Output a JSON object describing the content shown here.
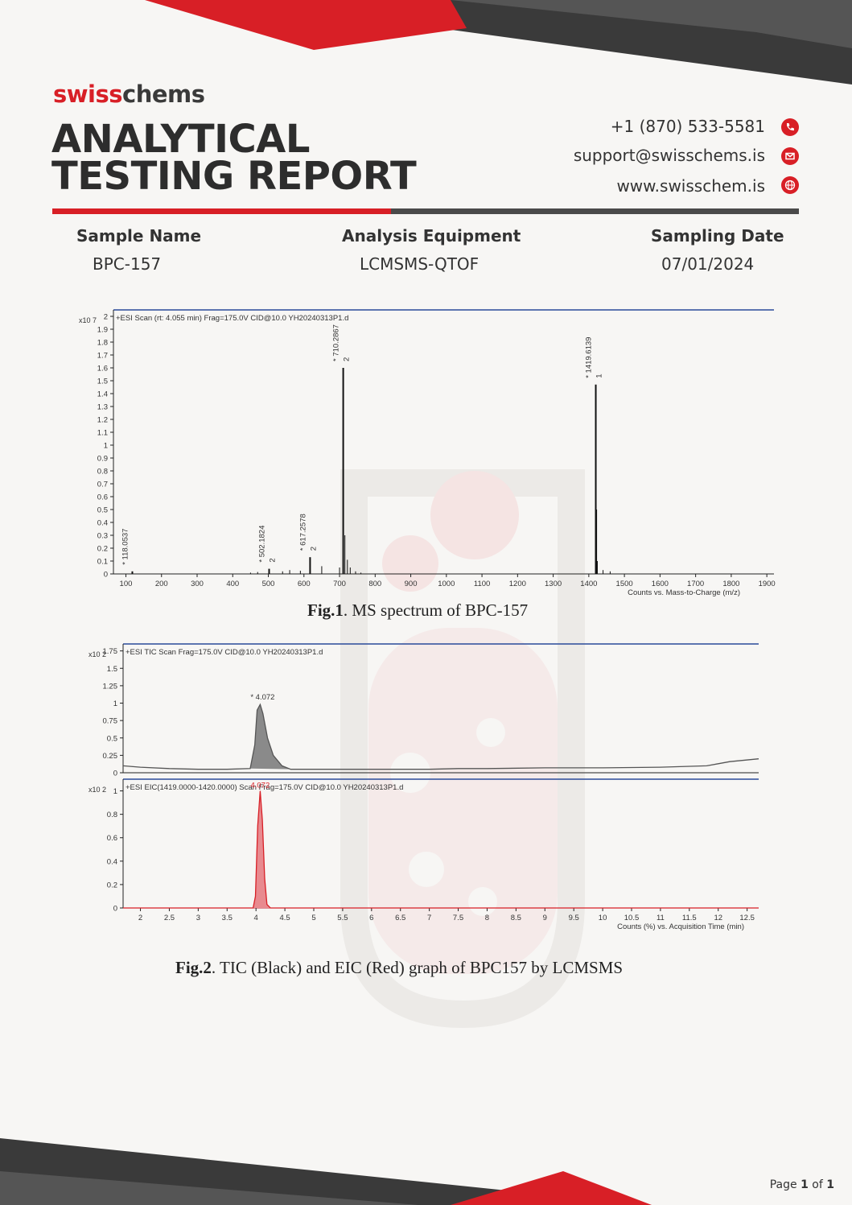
{
  "brand": {
    "part1": "swiss",
    "part2": "chems"
  },
  "title": {
    "line1": "ANALYTICAL",
    "line2": "TESTING REPORT"
  },
  "contact": {
    "phone": "+1 (870) 533-5581",
    "email": "support@swisschems.is",
    "website": "www.swisschem.is",
    "icons": [
      "phone-icon",
      "email-icon",
      "globe-icon"
    ]
  },
  "meta": {
    "sample_name_label": "Sample Name",
    "sample_name": "BPC-157",
    "equipment_label": "Analysis Equipment",
    "equipment": "LCMSMS-QTOF",
    "date_label": "Sampling Date",
    "date": "07/01/2024"
  },
  "colors": {
    "accent": "#d81f26",
    "dark": "#3a3a3a"
  },
  "chart_data": [
    {
      "type": "line",
      "chart": "ms-spectrum",
      "title": "+ESI Scan (rt: 4.055 min) Frag=175.0V CID@10.0 YH20240313P1.d",
      "y_multiplier": "x10 7",
      "xlabel": "Counts vs. Mass-to-Charge (m/z)",
      "xlim": [
        65,
        1920
      ],
      "ylim": [
        0,
        2.05
      ],
      "x_ticks": [
        "100",
        "200",
        "300",
        "400",
        "500",
        "600",
        "700",
        "800",
        "900",
        "1000",
        "1100",
        "1200",
        "1300",
        "1400",
        "1500",
        "1600",
        "1700",
        "1800",
        "1900"
      ],
      "y_ticks": [
        "0",
        "0.1",
        "0.2",
        "0.3",
        "0.4",
        "0.5",
        "0.6",
        "0.7",
        "0.8",
        "0.9",
        "1",
        "1.1",
        "1.2",
        "1.3",
        "1.4",
        "1.5",
        "1.6",
        "1.7",
        "1.8",
        "1.9",
        "2"
      ],
      "peaks": [
        {
          "x": 118.0537,
          "y": 0.02,
          "label": "118.0537",
          "charge": ""
        },
        {
          "x": 502.1824,
          "y": 0.04,
          "label": "502.1824",
          "charge": "2"
        },
        {
          "x": 617.2578,
          "y": 0.13,
          "label": "617.2578",
          "charge": "2"
        },
        {
          "x": 710.2867,
          "y": 1.6,
          "label": "710.2867",
          "charge": "2"
        },
        {
          "x": 1419.6139,
          "y": 1.47,
          "label": "1419.6139",
          "charge": "1"
        }
      ],
      "minor_peaks": [
        {
          "x": 450,
          "y": 0.01
        },
        {
          "x": 470,
          "y": 0.015
        },
        {
          "x": 540,
          "y": 0.02
        },
        {
          "x": 560,
          "y": 0.03
        },
        {
          "x": 590,
          "y": 0.025
        },
        {
          "x": 650,
          "y": 0.06
        },
        {
          "x": 700,
          "y": 0.05
        },
        {
          "x": 715,
          "y": 0.3
        },
        {
          "x": 722,
          "y": 0.11
        },
        {
          "x": 730,
          "y": 0.05
        },
        {
          "x": 745,
          "y": 0.02
        },
        {
          "x": 760,
          "y": 0.01
        },
        {
          "x": 1422,
          "y": 0.5
        },
        {
          "x": 1424,
          "y": 0.1
        },
        {
          "x": 1440,
          "y": 0.03
        },
        {
          "x": 1460,
          "y": 0.02
        }
      ]
    },
    {
      "type": "line",
      "chart": "tic",
      "title": "+ESI TIC Scan Frag=175.0V CID@10.0 YH20240313P1.d",
      "y_multiplier": "x10 2",
      "ylim": [
        0,
        1.85
      ],
      "xlim": [
        1.7,
        12.7
      ],
      "y_ticks": [
        "0",
        "0.25",
        "0.5",
        "0.75",
        "1",
        "1.25",
        "1.5",
        "1.75"
      ],
      "peak": {
        "x": 4.072,
        "label": "4.072"
      },
      "series": [
        {
          "color": "#555555",
          "x": [
            1.7,
            2.0,
            2.5,
            3.0,
            3.5,
            3.9,
            3.98,
            4.02,
            4.072,
            4.12,
            4.2,
            4.3,
            4.45,
            4.6,
            5.0,
            6.0,
            7.0,
            7.5,
            8.0,
            9.0,
            10.0,
            11.0,
            11.8,
            12.0,
            12.2,
            12.7
          ],
          "y": [
            0.1,
            0.08,
            0.06,
            0.05,
            0.05,
            0.06,
            0.4,
            0.9,
            0.98,
            0.85,
            0.5,
            0.25,
            0.1,
            0.05,
            0.05,
            0.05,
            0.05,
            0.06,
            0.06,
            0.07,
            0.07,
            0.08,
            0.1,
            0.13,
            0.16,
            0.2
          ]
        }
      ]
    },
    {
      "type": "line",
      "chart": "eic",
      "title": "+ESI EIC(1419.0000-1420.0000) Scan Frag=175.0V CID@10.0 YH20240313P1.d",
      "y_multiplier": "x10 2",
      "xlabel": "Counts (%) vs. Acquisition Time (min)",
      "ylim": [
        0,
        1.1
      ],
      "xlim": [
        1.7,
        12.7
      ],
      "y_ticks": [
        "0",
        "0.2",
        "0.4",
        "0.6",
        "0.8",
        "1"
      ],
      "x_ticks": [
        "2",
        "2.5",
        "3",
        "3.5",
        "4",
        "4.5",
        "5",
        "5.5",
        "6",
        "6.5",
        "7",
        "7.5",
        "8",
        "8.5",
        "9",
        "9.5",
        "10",
        "10.5",
        "11",
        "11.5",
        "12",
        "12.5"
      ],
      "peak": {
        "x": 4.072,
        "label": "4.072"
      },
      "series": [
        {
          "color": "#d81f26",
          "x": [
            1.7,
            3.95,
            3.99,
            4.03,
            4.072,
            4.11,
            4.15,
            4.19,
            4.25,
            12.7
          ],
          "y": [
            0,
            0,
            0.1,
            0.7,
            1.0,
            0.75,
            0.25,
            0.03,
            0,
            0
          ]
        }
      ]
    }
  ],
  "captions": {
    "fig1_bold": "Fig.1",
    "fig1_text": ". MS spectrum of BPC-157",
    "fig2_bold": "Fig.2",
    "fig2_text": ". TIC (Black) and EIC (Red) graph of BPC157 by LCMSMS"
  },
  "footer": {
    "page_word": "Page",
    "page_num": "1",
    "of_word": "of",
    "page_total": "1"
  }
}
